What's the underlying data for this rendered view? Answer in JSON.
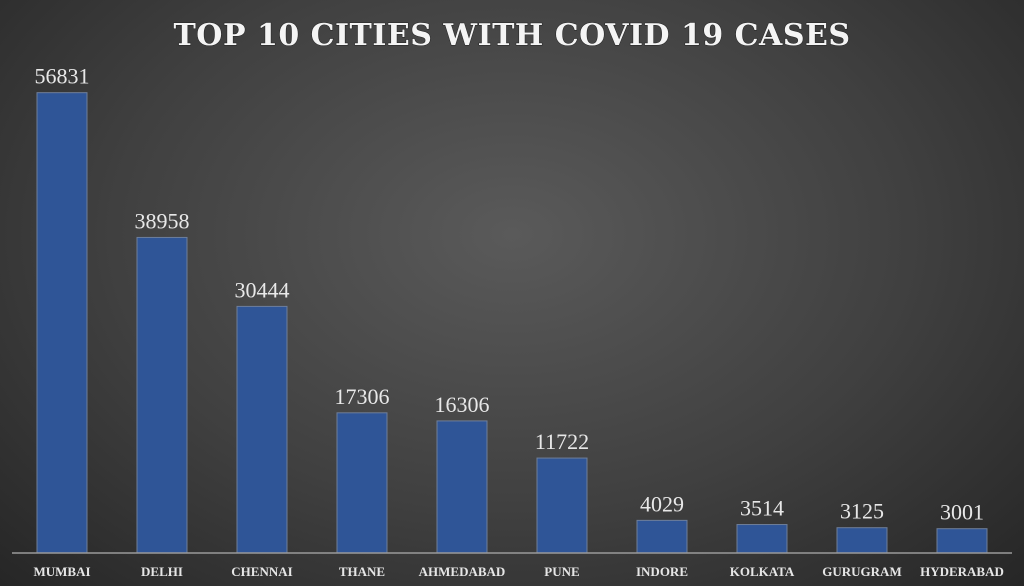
{
  "chart_data": {
    "type": "bar",
    "title": "TOP 10 CITIES WITH COVID 19 CASES",
    "categories": [
      "MUMBAI",
      "DELHI",
      "CHENNAI",
      "THANE",
      "AHMEDABAD",
      "PUNE",
      "INDORE",
      "KOLKATA",
      "GURUGRAM",
      "HYDERABAD"
    ],
    "values": [
      56831,
      38958,
      30444,
      17306,
      16306,
      11722,
      4029,
      3514,
      3125,
      3001
    ],
    "xlabel": "",
    "ylabel": "",
    "ylim": [
      0,
      60000
    ],
    "grid": false,
    "legend": "none",
    "bar_color": "#2f5597",
    "data_labels": true
  }
}
